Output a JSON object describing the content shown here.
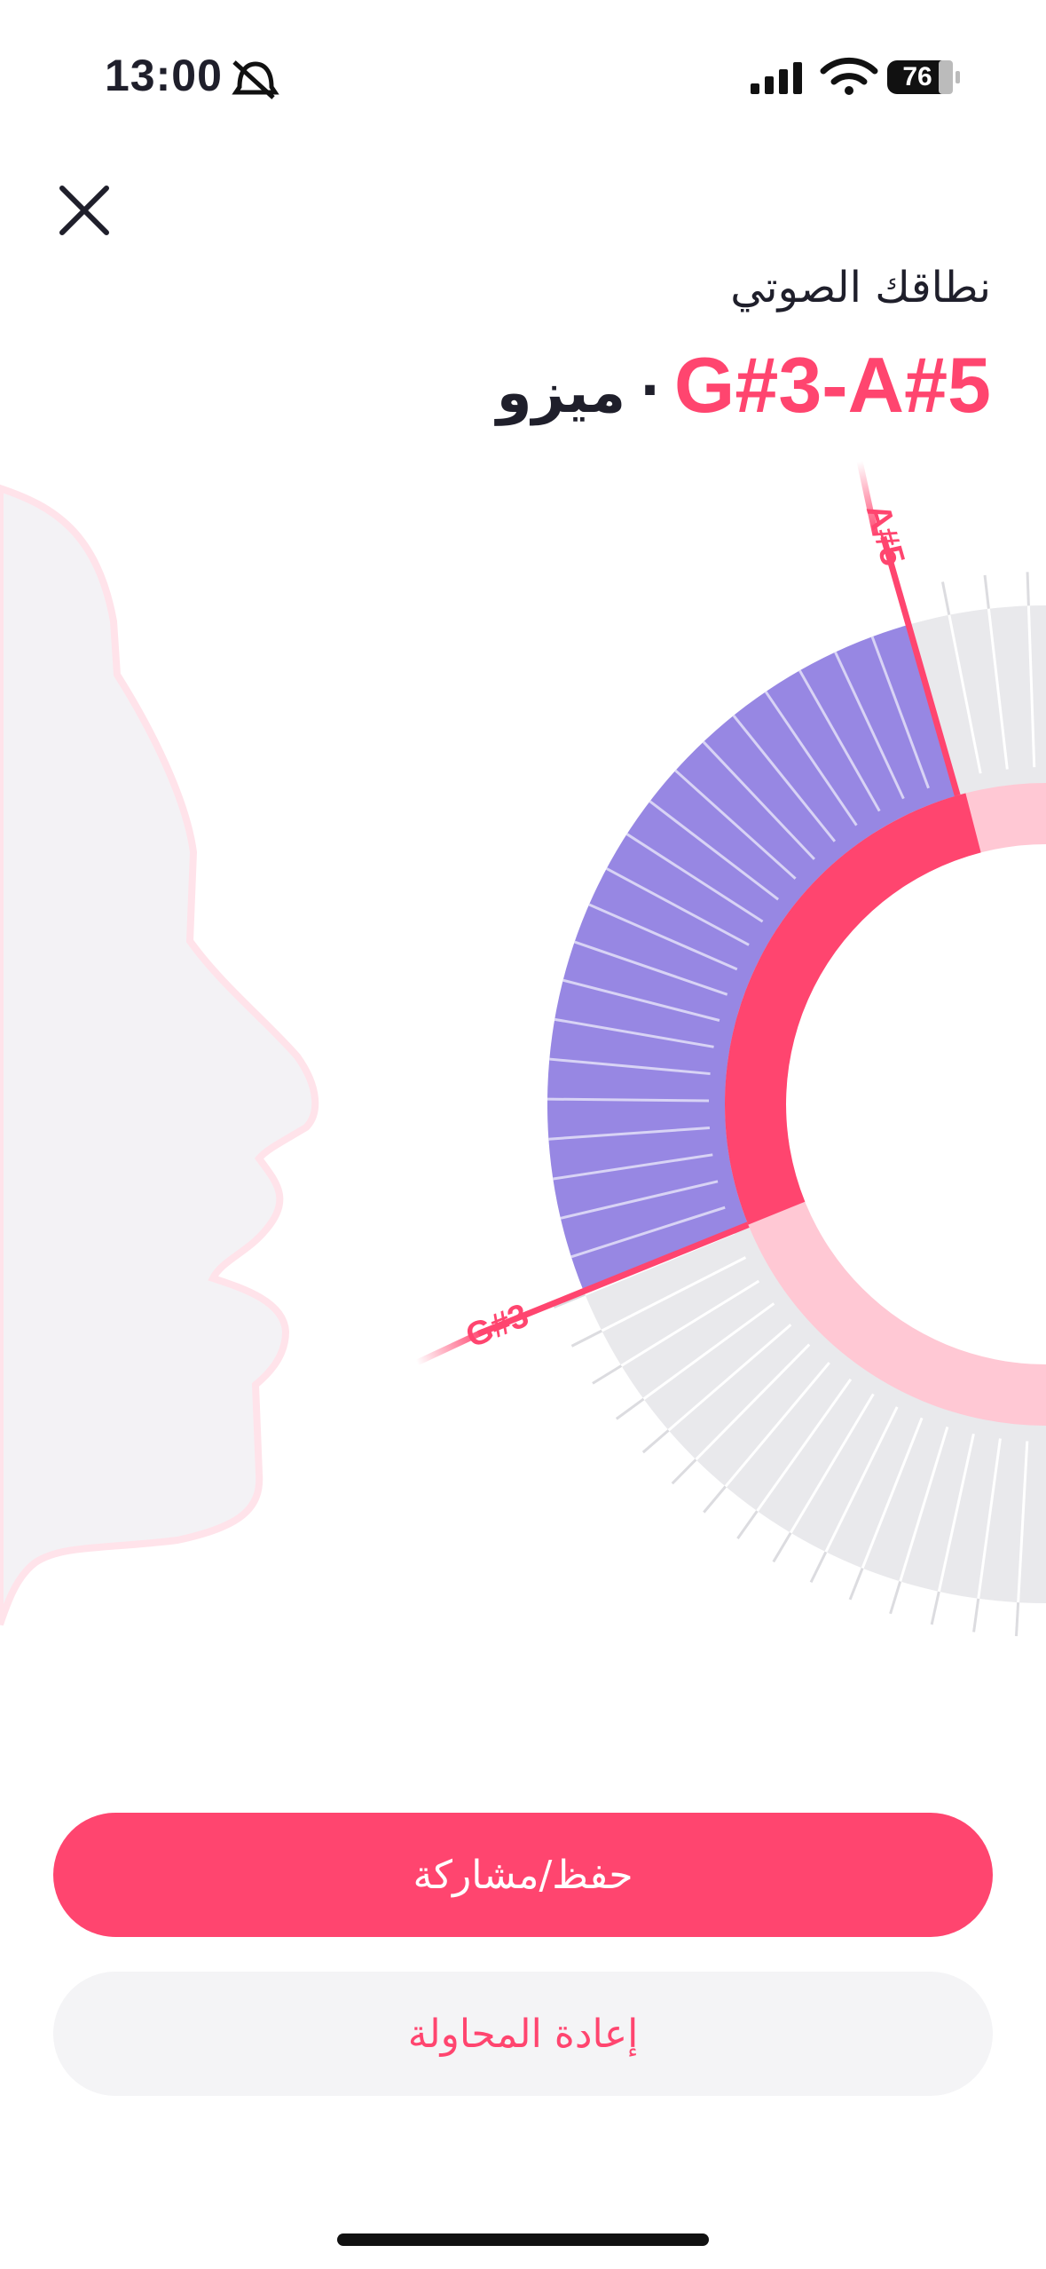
{
  "status_bar": {
    "time": "13:00",
    "battery": "76"
  },
  "header": {
    "title": "نطاقك الصوتي",
    "range": "G#3-A#5",
    "separator": "·",
    "voice_type": "ميزو"
  },
  "diagram": {
    "low_label": "G#3",
    "high_label": "A#5"
  },
  "buttons": {
    "primary": "حفظ/مشاركة",
    "secondary": "إعادة المحاولة"
  }
}
